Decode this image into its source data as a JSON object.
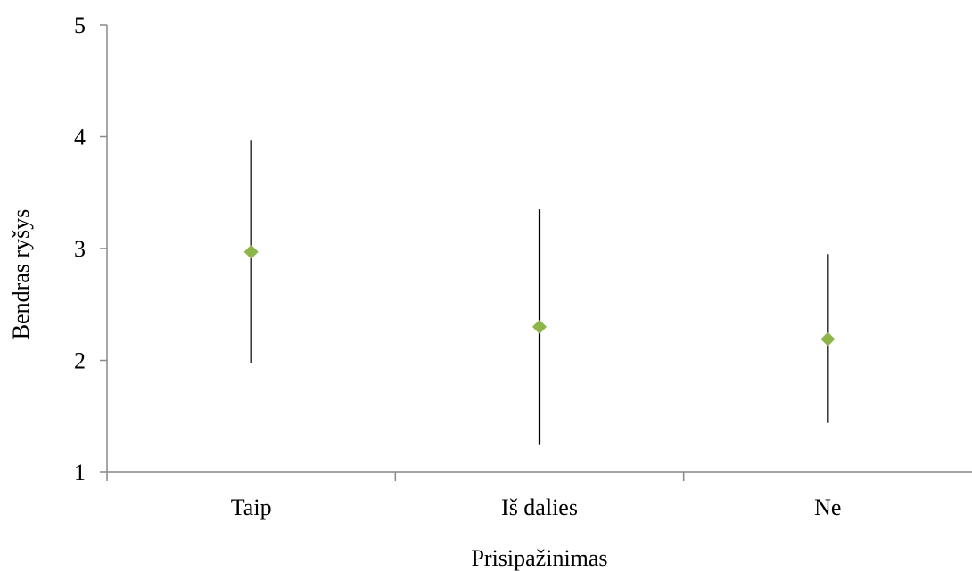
{
  "chart_data": {
    "type": "scatter",
    "title": "",
    "xlabel": "Prisipažinimas",
    "ylabel": "Bendras ryšys",
    "categories": [
      "Taip",
      "Iš dalies",
      "Ne"
    ],
    "series": [
      {
        "values": [
          2.97,
          2.3,
          2.19
        ],
        "error_low": [
          1.98,
          1.25,
          1.44
        ],
        "error_high": [
          3.97,
          3.35,
          2.95
        ],
        "marker": "diamond",
        "color": "#8db54a"
      }
    ],
    "ylim": [
      1,
      5
    ],
    "yticks": [
      1,
      2,
      3,
      4,
      5
    ],
    "grid": false,
    "legend": "none"
  }
}
